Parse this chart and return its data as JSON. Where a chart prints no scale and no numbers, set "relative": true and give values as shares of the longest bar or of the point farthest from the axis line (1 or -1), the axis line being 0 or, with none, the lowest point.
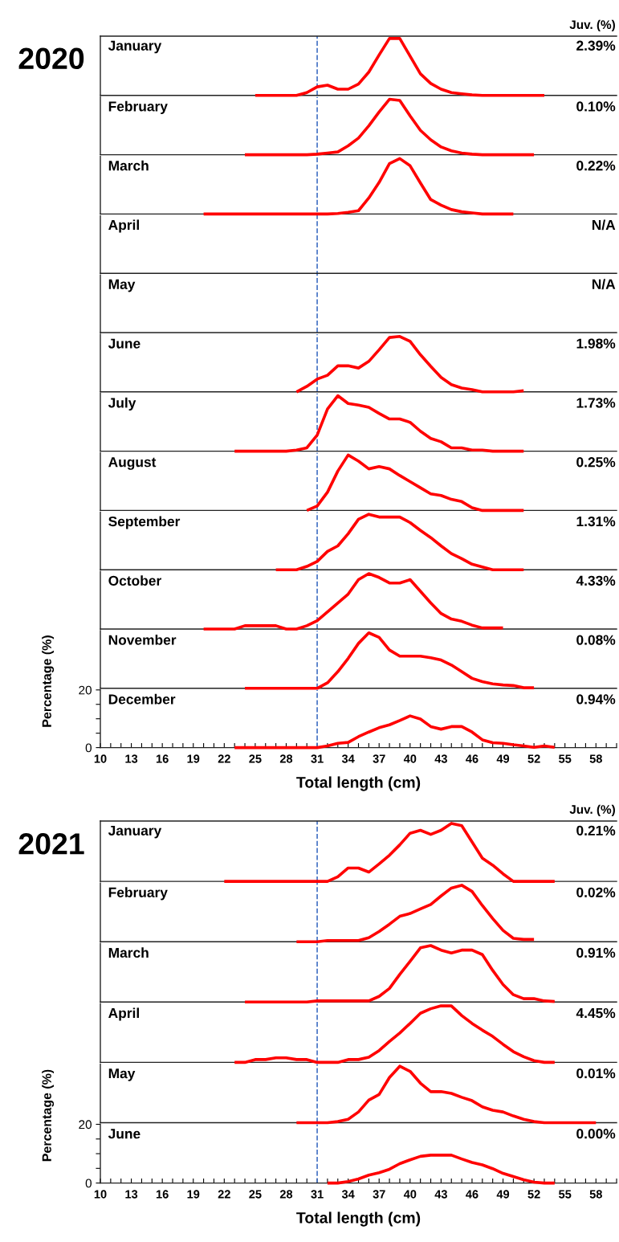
{
  "chart_data": [
    {
      "type": "line",
      "relative": true,
      "title": "January",
      "annotations": [
        "2020",
        "Juv. (%)",
        "2.39%"
      ],
      "color": "#ff0000",
      "xlim": [
        10,
        60
      ],
      "ref_lines": [
        {
          "axis": "x",
          "value": 31,
          "color": "#4472c4",
          "line_style": "dashed"
        }
      ],
      "x": [
        25,
        26,
        27,
        28,
        29,
        30,
        31,
        32,
        33,
        34,
        35,
        36,
        37,
        38,
        39,
        40,
        41,
        42,
        43,
        44,
        45,
        46,
        47,
        48,
        49,
        50,
        51,
        52,
        53
      ],
      "values": [
        0,
        0,
        0,
        0,
        0,
        0.05,
        0.15,
        0.18,
        0.11,
        0.11,
        0.2,
        0.41,
        0.71,
        1,
        1,
        0.69,
        0.38,
        0.21,
        0.11,
        0.05,
        0.03,
        0.01,
        0,
        0,
        0,
        0,
        0,
        0,
        0
      ]
    },
    {
      "type": "line",
      "relative": true,
      "title": "February",
      "annotations": [
        "0.10%"
      ],
      "color": "#ff0000",
      "xlim": [
        10,
        60
      ],
      "ref_lines": [
        {
          "axis": "x",
          "value": 31,
          "color": "#4472c4",
          "line_style": "dashed"
        }
      ],
      "x": [
        24,
        25,
        26,
        27,
        28,
        29,
        30,
        31,
        32,
        33,
        34,
        35,
        36,
        37,
        38,
        39,
        40,
        41,
        42,
        43,
        44,
        45,
        46,
        47,
        48,
        49,
        50,
        51,
        52
      ],
      "values": [
        0,
        0,
        0,
        0,
        0,
        0,
        0,
        0.01,
        0.03,
        0.05,
        0.16,
        0.3,
        0.52,
        0.77,
        1,
        0.98,
        0.7,
        0.44,
        0.27,
        0.14,
        0.07,
        0.03,
        0.01,
        0,
        0,
        0,
        0,
        0,
        0
      ]
    },
    {
      "type": "line",
      "relative": true,
      "title": "March",
      "annotations": [
        "0.22%"
      ],
      "color": "#ff0000",
      "xlim": [
        10,
        60
      ],
      "ref_lines": [
        {
          "axis": "x",
          "value": 31,
          "color": "#4472c4",
          "line_style": "dashed"
        }
      ],
      "x": [
        20,
        21,
        22,
        23,
        24,
        25,
        26,
        27,
        28,
        29,
        30,
        31,
        32,
        33,
        34,
        35,
        36,
        37,
        38,
        39,
        40,
        41,
        42,
        43,
        44,
        45,
        46,
        47,
        48,
        49,
        50
      ],
      "values": [
        0,
        0,
        0,
        0,
        0,
        0,
        0,
        0,
        0,
        0,
        0,
        0,
        0,
        0.01,
        0.03,
        0.06,
        0.29,
        0.57,
        0.91,
        1,
        0.87,
        0.56,
        0.26,
        0.16,
        0.08,
        0.04,
        0.02,
        0,
        0,
        0,
        0
      ]
    },
    {
      "type": "other",
      "title": "April",
      "annotations": [
        "N/A"
      ]
    },
    {
      "type": "other",
      "title": "May",
      "annotations": [
        "N/A"
      ]
    },
    {
      "type": "line",
      "relative": true,
      "title": "June",
      "annotations": [
        "1.98%"
      ],
      "color": "#ff0000",
      "xlim": [
        10,
        60
      ],
      "ref_lines": [
        {
          "axis": "x",
          "value": 31,
          "color": "#4472c4",
          "line_style": "dashed"
        }
      ],
      "x": [
        29,
        30,
        31,
        32,
        33,
        34,
        35,
        36,
        37,
        38,
        39,
        40,
        41,
        42,
        43,
        44,
        45,
        46,
        47,
        48,
        49,
        50,
        51
      ],
      "values": [
        0,
        0.1,
        0.23,
        0.3,
        0.47,
        0.47,
        0.43,
        0.55,
        0.76,
        0.98,
        1,
        0.91,
        0.67,
        0.46,
        0.26,
        0.13,
        0.07,
        0.04,
        0,
        0,
        0,
        0,
        0.02
      ]
    },
    {
      "type": "line",
      "relative": true,
      "title": "July",
      "annotations": [
        "1.73%"
      ],
      "color": "#ff0000",
      "xlim": [
        10,
        60
      ],
      "ref_lines": [
        {
          "axis": "x",
          "value": 31,
          "color": "#4472c4",
          "line_style": "dashed"
        }
      ],
      "x": [
        23,
        24,
        25,
        26,
        27,
        28,
        29,
        30,
        31,
        32,
        33,
        34,
        35,
        36,
        37,
        38,
        39,
        40,
        41,
        42,
        43,
        44,
        45,
        46,
        47,
        48,
        49,
        50,
        51
      ],
      "values": [
        0,
        0,
        0,
        0,
        0,
        0,
        0.02,
        0.06,
        0.29,
        0.76,
        1,
        0.86,
        0.83,
        0.79,
        0.68,
        0.58,
        0.58,
        0.52,
        0.36,
        0.23,
        0.17,
        0.06,
        0.06,
        0.02,
        0.02,
        0,
        0,
        0,
        0
      ]
    },
    {
      "type": "line",
      "relative": true,
      "title": "August",
      "annotations": [
        "0.25%"
      ],
      "color": "#ff0000",
      "xlim": [
        10,
        60
      ],
      "ref_lines": [
        {
          "axis": "x",
          "value": 31,
          "color": "#4472c4",
          "line_style": "dashed"
        }
      ],
      "x": [
        30,
        31,
        32,
        33,
        34,
        35,
        36,
        37,
        38,
        39,
        40,
        41,
        42,
        43,
        44,
        45,
        46,
        47,
        48,
        49,
        50,
        51
      ],
      "values": [
        0,
        0.08,
        0.33,
        0.71,
        1,
        0.89,
        0.75,
        0.79,
        0.75,
        0.63,
        0.52,
        0.41,
        0.3,
        0.27,
        0.2,
        0.16,
        0.05,
        0,
        0,
        0,
        0,
        0
      ]
    },
    {
      "type": "line",
      "relative": true,
      "title": "September",
      "annotations": [
        "1.31%"
      ],
      "color": "#ff0000",
      "xlim": [
        10,
        60
      ],
      "ref_lines": [
        {
          "axis": "x",
          "value": 31,
          "color": "#4472c4",
          "line_style": "dashed"
        }
      ],
      "x": [
        27,
        28,
        29,
        30,
        31,
        32,
        33,
        34,
        35,
        36,
        37,
        38,
        39,
        40,
        41,
        42,
        43,
        44,
        45,
        46,
        47,
        48,
        49,
        50,
        51
      ],
      "values": [
        0,
        0,
        0,
        0.06,
        0.15,
        0.33,
        0.43,
        0.65,
        0.91,
        1,
        0.95,
        0.95,
        0.95,
        0.85,
        0.71,
        0.58,
        0.43,
        0.29,
        0.2,
        0.1,
        0.05,
        0,
        0,
        0,
        0
      ]
    },
    {
      "type": "line",
      "relative": true,
      "title": "October",
      "annotations": [
        "4.33%"
      ],
      "color": "#ff0000",
      "xlim": [
        10,
        60
      ],
      "ref_lines": [
        {
          "axis": "x",
          "value": 31,
          "color": "#4472c4",
          "line_style": "dashed"
        }
      ],
      "x": [
        20,
        21,
        22,
        23,
        24,
        25,
        26,
        27,
        28,
        29,
        30,
        31,
        32,
        33,
        34,
        35,
        36,
        37,
        38,
        39,
        40,
        41,
        42,
        43,
        44,
        45,
        46,
        47,
        48,
        49
      ],
      "values": [
        0,
        0,
        0,
        0,
        0.06,
        0.06,
        0.06,
        0.06,
        0,
        0,
        0.06,
        0.15,
        0.31,
        0.47,
        0.63,
        0.89,
        1,
        0.93,
        0.83,
        0.83,
        0.89,
        0.68,
        0.47,
        0.28,
        0.18,
        0.14,
        0.07,
        0.02,
        0.02,
        0.02
      ]
    },
    {
      "type": "line",
      "relative": true,
      "title": "November",
      "annotations": [
        "0.08%"
      ],
      "color": "#ff0000",
      "xlim": [
        10,
        60
      ],
      "ref_lines": [
        {
          "axis": "x",
          "value": 31,
          "color": "#4472c4",
          "line_style": "dashed"
        }
      ],
      "x": [
        24,
        25,
        26,
        27,
        28,
        29,
        30,
        31,
        32,
        33,
        34,
        35,
        36,
        37,
        38,
        39,
        40,
        41,
        42,
        43,
        44,
        45,
        46,
        47,
        48,
        49,
        50,
        51,
        52
      ],
      "values": [
        0,
        0,
        0,
        0,
        0,
        0,
        0,
        0,
        0.1,
        0.3,
        0.54,
        0.81,
        1,
        0.92,
        0.69,
        0.58,
        0.58,
        0.58,
        0.55,
        0.51,
        0.42,
        0.3,
        0.18,
        0.12,
        0.08,
        0.06,
        0.05,
        0.01,
        0.01
      ]
    },
    {
      "type": "line",
      "title": "December",
      "annotations": [
        "0.94%"
      ],
      "xlabel": "Total length (cm)",
      "ylabel": "Percentage (%)",
      "color": "#ff0000",
      "xlim": [
        10,
        60
      ],
      "ylim": [
        0,
        20
      ],
      "yticks": [
        0,
        {
          "value": 5,
          "label": null
        },
        {
          "value": 10,
          "label": null
        },
        {
          "value": 15,
          "label": null
        },
        20
      ],
      "xticks": [
        10,
        {
          "value": 11,
          "label": null
        },
        {
          "value": 12,
          "label": null
        },
        13,
        {
          "value": 14,
          "label": null
        },
        {
          "value": 15,
          "label": null
        },
        16,
        {
          "value": 17,
          "label": null
        },
        {
          "value": 18,
          "label": null
        },
        19,
        {
          "value": 20,
          "label": null
        },
        {
          "value": 21,
          "label": null
        },
        22,
        {
          "value": 23,
          "label": null
        },
        {
          "value": 24,
          "label": null
        },
        25,
        {
          "value": 26,
          "label": null
        },
        {
          "value": 27,
          "label": null
        },
        28,
        {
          "value": 29,
          "label": null
        },
        {
          "value": 30,
          "label": null
        },
        31,
        {
          "value": 32,
          "label": null
        },
        {
          "value": 33,
          "label": null
        },
        34,
        {
          "value": 35,
          "label": null
        },
        {
          "value": 36,
          "label": null
        },
        37,
        {
          "value": 38,
          "label": null
        },
        {
          "value": 39,
          "label": null
        },
        40,
        {
          "value": 41,
          "label": null
        },
        {
          "value": 42,
          "label": null
        },
        43,
        {
          "value": 44,
          "label": null
        },
        {
          "value": 45,
          "label": null
        },
        46,
        {
          "value": 47,
          "label": null
        },
        {
          "value": 48,
          "label": null
        },
        49,
        {
          "value": 50,
          "label": null
        },
        {
          "value": 51,
          "label": null
        },
        52,
        {
          "value": 53,
          "label": null
        },
        {
          "value": 54,
          "label": null
        },
        55,
        {
          "value": 56,
          "label": null
        },
        {
          "value": 57,
          "label": null
        },
        58,
        {
          "value": 59,
          "label": null
        },
        {
          "value": 60,
          "label": null
        }
      ],
      "ref_lines": [
        {
          "axis": "x",
          "value": 31,
          "color": "#4472c4",
          "line_style": "dashed"
        }
      ],
      "x": [
        23,
        24,
        25,
        26,
        27,
        28,
        29,
        30,
        31,
        32,
        33,
        34,
        35,
        36,
        37,
        38,
        39,
        40,
        41,
        42,
        43,
        44,
        45,
        46,
        47,
        48,
        49,
        50,
        51,
        52,
        53,
        54
      ],
      "values": [
        0,
        0,
        0,
        0,
        0,
        0,
        0,
        0,
        0,
        0.6,
        1.5,
        1.8,
        3.8,
        5.4,
        6.9,
        7.9,
        9.4,
        11.0,
        9.9,
        7.3,
        6.4,
        7.3,
        7.3,
        5.4,
        2.7,
        1.7,
        1.5,
        1.0,
        0.6,
        0.1,
        0.6,
        0.1
      ]
    },
    {
      "type": "line",
      "relative": true,
      "title": "January",
      "annotations": [
        "2021",
        "Juv. (%)",
        "0.21%"
      ],
      "color": "#ff0000",
      "xlim": [
        10,
        60
      ],
      "ref_lines": [
        {
          "axis": "x",
          "value": 31,
          "color": "#4472c4",
          "line_style": "dashed"
        }
      ],
      "x": [
        22,
        23,
        24,
        25,
        26,
        27,
        28,
        29,
        30,
        31,
        32,
        33,
        34,
        35,
        36,
        37,
        38,
        39,
        40,
        41,
        42,
        43,
        44,
        45,
        46,
        47,
        48,
        49,
        50,
        51,
        52,
        53,
        54
      ],
      "values": [
        0,
        0,
        0,
        0,
        0,
        0,
        0,
        0,
        0,
        0,
        0,
        0.08,
        0.23,
        0.23,
        0.16,
        0.3,
        0.45,
        0.63,
        0.83,
        0.88,
        0.81,
        0.88,
        1,
        0.96,
        0.68,
        0.4,
        0.28,
        0.13,
        0,
        0,
        0,
        0,
        0
      ]
    },
    {
      "type": "line",
      "relative": true,
      "title": "February",
      "annotations": [
        "0.02%"
      ],
      "color": "#ff0000",
      "xlim": [
        10,
        60
      ],
      "ref_lines": [
        {
          "axis": "x",
          "value": 31,
          "color": "#4472c4",
          "line_style": "dashed"
        }
      ],
      "x": [
        29,
        30,
        31,
        32,
        33,
        34,
        35,
        36,
        37,
        38,
        39,
        40,
        41,
        42,
        43,
        44,
        45,
        46,
        47,
        48,
        49,
        50,
        51,
        52
      ],
      "values": [
        0,
        0,
        0,
        0.02,
        0.02,
        0.02,
        0.02,
        0.07,
        0.18,
        0.31,
        0.45,
        0.5,
        0.58,
        0.66,
        0.81,
        0.95,
        1,
        0.89,
        0.64,
        0.41,
        0.2,
        0.06,
        0.04,
        0.04
      ]
    },
    {
      "type": "line",
      "relative": true,
      "title": "March",
      "annotations": [
        "0.91%"
      ],
      "color": "#ff0000",
      "xlim": [
        10,
        60
      ],
      "ref_lines": [
        {
          "axis": "x",
          "value": 31,
          "color": "#4472c4",
          "line_style": "dashed"
        }
      ],
      "x": [
        24,
        25,
        26,
        27,
        28,
        29,
        30,
        31,
        32,
        33,
        34,
        35,
        36,
        37,
        38,
        39,
        40,
        41,
        42,
        43,
        44,
        45,
        46,
        47,
        48,
        49,
        50,
        51,
        52,
        53,
        54
      ],
      "values": [
        0,
        0,
        0,
        0,
        0,
        0,
        0,
        0.02,
        0.02,
        0.02,
        0.02,
        0.02,
        0.02,
        0.1,
        0.24,
        0.49,
        0.72,
        0.96,
        1,
        0.92,
        0.87,
        0.92,
        0.92,
        0.84,
        0.56,
        0.31,
        0.13,
        0.06,
        0.06,
        0.02,
        0.01
      ]
    },
    {
      "type": "line",
      "relative": true,
      "title": "April",
      "annotations": [
        "4.45%"
      ],
      "color": "#ff0000",
      "xlim": [
        10,
        60
      ],
      "ref_lines": [
        {
          "axis": "x",
          "value": 31,
          "color": "#4472c4",
          "line_style": "dashed"
        }
      ],
      "x": [
        23,
        24,
        25,
        26,
        27,
        28,
        29,
        30,
        31,
        32,
        33,
        34,
        35,
        36,
        37,
        38,
        39,
        40,
        41,
        42,
        43,
        44,
        45,
        46,
        47,
        48,
        49,
        50,
        51,
        52,
        53,
        54
      ],
      "values": [
        0,
        0,
        0.05,
        0.05,
        0.08,
        0.08,
        0.05,
        0.05,
        0,
        0,
        0,
        0.05,
        0.05,
        0.09,
        0.21,
        0.37,
        0.52,
        0.69,
        0.87,
        0.95,
        1,
        1,
        0.83,
        0.69,
        0.57,
        0.46,
        0.32,
        0.19,
        0.1,
        0.03,
        0,
        0
      ]
    },
    {
      "type": "line",
      "relative": true,
      "title": "May",
      "annotations": [
        "0.01%"
      ],
      "color": "#ff0000",
      "xlim": [
        10,
        60
      ],
      "ref_lines": [
        {
          "axis": "x",
          "value": 31,
          "color": "#4472c4",
          "line_style": "dashed"
        }
      ],
      "x": [
        29,
        30,
        31,
        32,
        33,
        34,
        35,
        36,
        37,
        38,
        39,
        40,
        41,
        42,
        43,
        44,
        45,
        46,
        47,
        48,
        49,
        50,
        51,
        52,
        53,
        54,
        55,
        56,
        57,
        58
      ],
      "values": [
        0,
        0,
        0,
        0,
        0.02,
        0.06,
        0.19,
        0.4,
        0.5,
        0.8,
        1,
        0.91,
        0.7,
        0.55,
        0.55,
        0.52,
        0.45,
        0.39,
        0.28,
        0.22,
        0.19,
        0.12,
        0.06,
        0.02,
        0,
        0,
        0,
        0,
        0,
        0
      ]
    },
    {
      "type": "line",
      "title": "June",
      "annotations": [
        "0.00%"
      ],
      "xlabel": "Total length (cm)",
      "ylabel": "Percentage (%)",
      "color": "#ff0000",
      "xlim": [
        10,
        60
      ],
      "ylim": [
        0,
        20
      ],
      "yticks": [
        0,
        {
          "value": 5,
          "label": null
        },
        {
          "value": 10,
          "label": null
        },
        {
          "value": 15,
          "label": null
        },
        20
      ],
      "xticks": [
        10,
        {
          "value": 11,
          "label": null
        },
        {
          "value": 12,
          "label": null
        },
        13,
        {
          "value": 14,
          "label": null
        },
        {
          "value": 15,
          "label": null
        },
        16,
        {
          "value": 17,
          "label": null
        },
        {
          "value": 18,
          "label": null
        },
        19,
        {
          "value": 20,
          "label": null
        },
        {
          "value": 21,
          "label": null
        },
        22,
        {
          "value": 23,
          "label": null
        },
        {
          "value": 24,
          "label": null
        },
        25,
        {
          "value": 26,
          "label": null
        },
        {
          "value": 27,
          "label": null
        },
        28,
        {
          "value": 29,
          "label": null
        },
        {
          "value": 30,
          "label": null
        },
        31,
        {
          "value": 32,
          "label": null
        },
        {
          "value": 33,
          "label": null
        },
        34,
        {
          "value": 35,
          "label": null
        },
        {
          "value": 36,
          "label": null
        },
        37,
        {
          "value": 38,
          "label": null
        },
        {
          "value": 39,
          "label": null
        },
        40,
        {
          "value": 41,
          "label": null
        },
        {
          "value": 42,
          "label": null
        },
        43,
        {
          "value": 44,
          "label": null
        },
        {
          "value": 45,
          "label": null
        },
        46,
        {
          "value": 47,
          "label": null
        },
        {
          "value": 48,
          "label": null
        },
        49,
        {
          "value": 50,
          "label": null
        },
        {
          "value": 51,
          "label": null
        },
        52,
        {
          "value": 53,
          "label": null
        },
        {
          "value": 54,
          "label": null
        },
        55,
        {
          "value": 56,
          "label": null
        },
        {
          "value": 57,
          "label": null
        },
        58,
        {
          "value": 59,
          "label": null
        },
        {
          "value": 60,
          "label": null
        }
      ],
      "ref_lines": [
        {
          "axis": "x",
          "value": 31,
          "color": "#4472c4",
          "line_style": "dashed"
        }
      ],
      "x": [
        32,
        33,
        34,
        35,
        36,
        37,
        38,
        39,
        40,
        41,
        42,
        43,
        44,
        45,
        46,
        47,
        48,
        49,
        50,
        51,
        52,
        53,
        54
      ],
      "values": [
        0,
        0,
        0.5,
        1.4,
        2.7,
        3.5,
        4.7,
        6.6,
        7.9,
        9.1,
        9.5,
        9.5,
        9.5,
        8.2,
        7.0,
        6.2,
        4.9,
        3.3,
        2.2,
        1.1,
        0.3,
        0,
        0
      ]
    }
  ]
}
